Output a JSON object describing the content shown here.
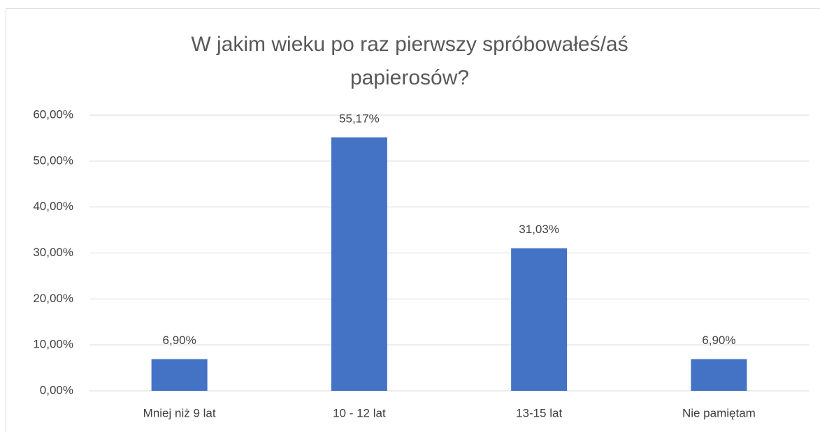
{
  "chart_data": {
    "type": "bar",
    "title": "W jakim wieku po raz pierwszy spróbowałeś/aś papierosów?",
    "categories": [
      "Mniej niż 9 lat",
      "10 - 12 lat",
      "13-15 lat",
      "Nie pamiętam"
    ],
    "values": [
      6.9,
      55.17,
      31.03,
      6.9
    ],
    "value_labels": [
      "6,90%",
      "55,17%",
      "31,03%",
      "6,90%"
    ],
    "color": "#4472c4",
    "ylim": [
      0,
      60
    ],
    "yticks": [
      {
        "value": 0,
        "label": "0,00%"
      },
      {
        "value": 10,
        "label": "10,00%"
      },
      {
        "value": 20,
        "label": "20,00%"
      },
      {
        "value": 30,
        "label": "30,00%"
      },
      {
        "value": 40,
        "label": "40,00%"
      },
      {
        "value": 50,
        "label": "50,00%"
      },
      {
        "value": 60,
        "label": "60,00%"
      }
    ],
    "grid": true
  }
}
